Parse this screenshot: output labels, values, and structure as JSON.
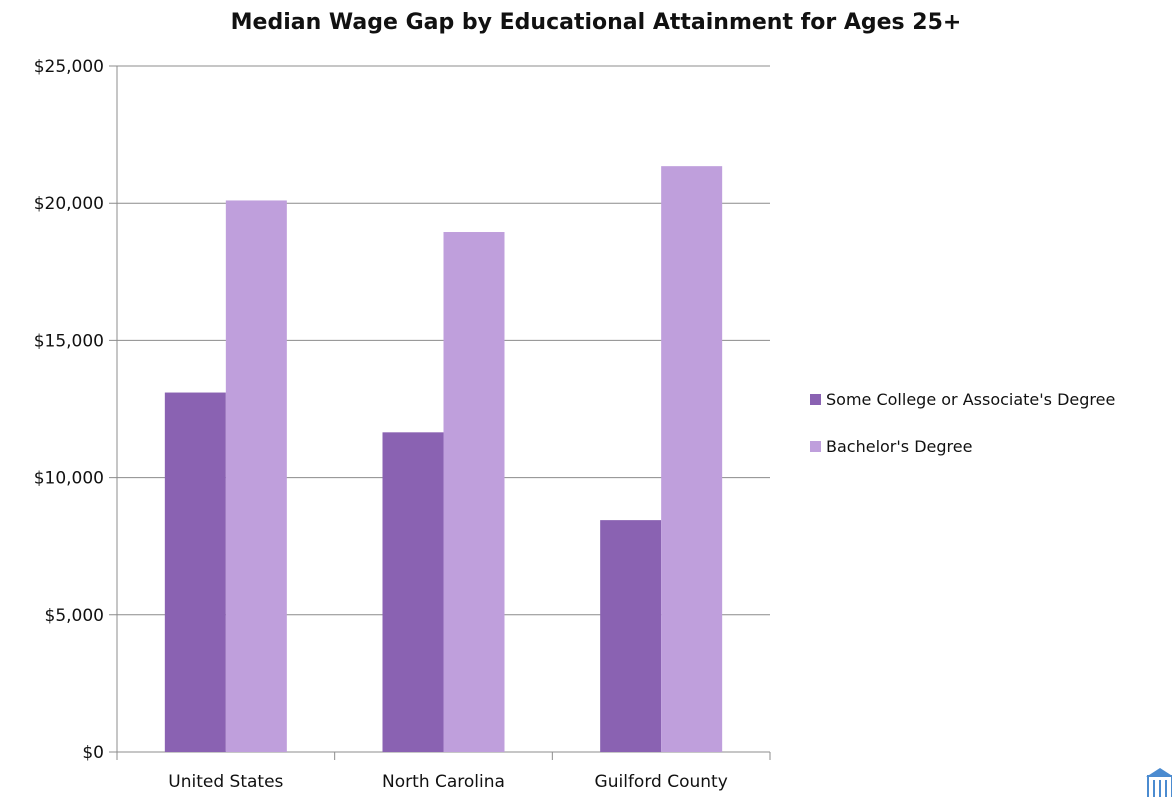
{
  "chart_data": {
    "type": "bar",
    "title": "Median Wage Gap by Educational Attainment for Ages 25+",
    "xlabel": "",
    "ylabel": "",
    "categories": [
      "United States",
      "North Carolina",
      "Guilford County"
    ],
    "series": [
      {
        "name": "Some College or Associate's Degree",
        "color": "#8a62b2",
        "values": [
          13100,
          11650,
          8450
        ]
      },
      {
        "name": "Bachelor's Degree",
        "color": "#bf9fdc",
        "values": [
          20100,
          18950,
          21350
        ]
      }
    ],
    "ylim": [
      0,
      25000
    ],
    "yticks": [
      {
        "value": 0,
        "label": "$0"
      },
      {
        "value": 5000,
        "label": "$5,000"
      },
      {
        "value": 10000,
        "label": "$10,000"
      },
      {
        "value": 15000,
        "label": "$15,000"
      },
      {
        "value": 20000,
        "label": "$20,000"
      },
      {
        "value": 25000,
        "label": "$25,000"
      }
    ],
    "grid": true,
    "legend_position": "right",
    "gridline_color": "#8c8c8c"
  },
  "logo": {
    "name": "building-logo-icon",
    "color": "#4b8bd0"
  }
}
